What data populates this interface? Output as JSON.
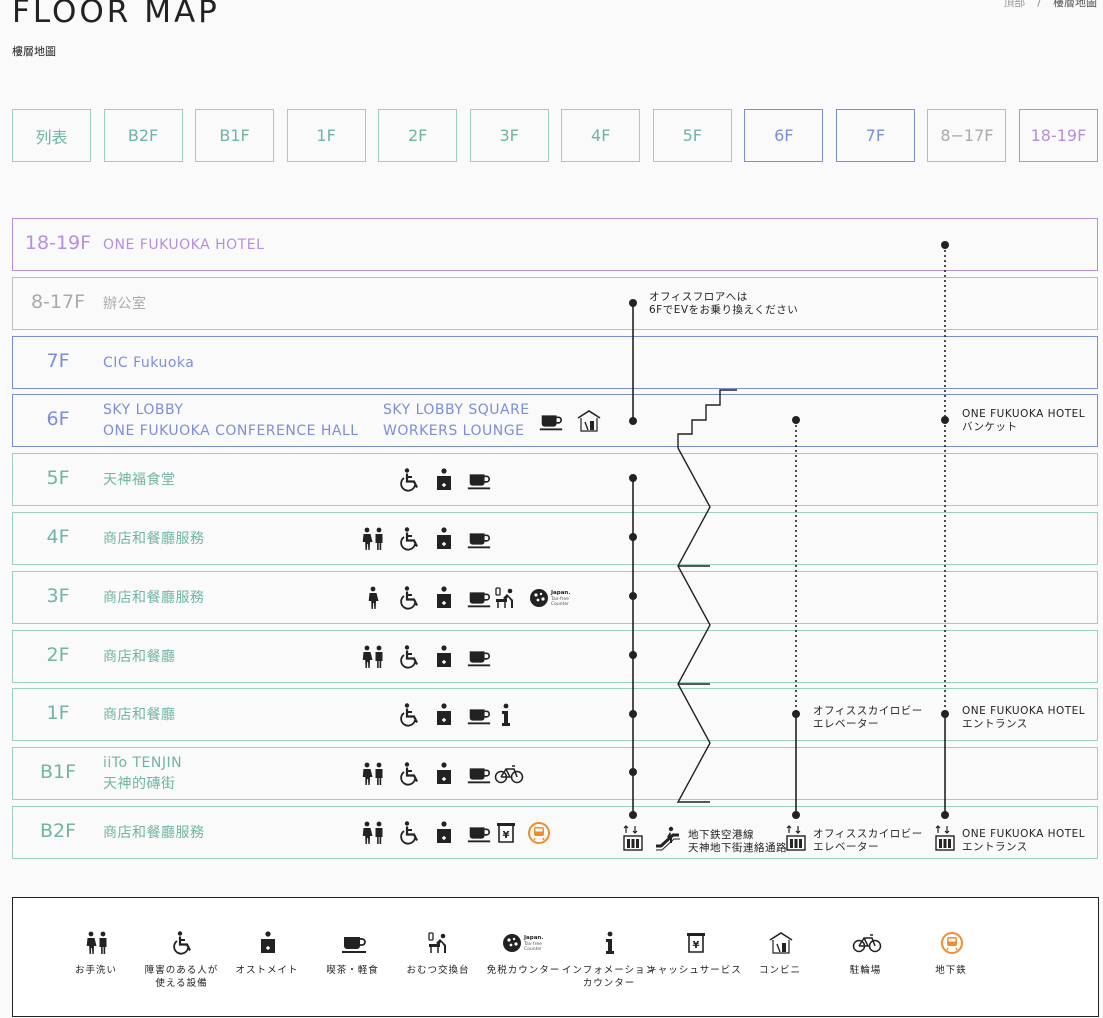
{
  "header": {
    "title": "FLOOR MAP",
    "subtitle": "樓層地圖",
    "breadcrumb": [
      "頂部",
      "樓層地圖"
    ],
    "breadcrumb_sep": "/"
  },
  "tabs": [
    {
      "label": "列表",
      "style": "green"
    },
    {
      "label": "B2F",
      "style": "green"
    },
    {
      "label": "B1F",
      "style": "green"
    },
    {
      "label": "1F",
      "style": "green"
    },
    {
      "label": "2F",
      "style": "green"
    },
    {
      "label": "3F",
      "style": "green"
    },
    {
      "label": "4F",
      "style": "green"
    },
    {
      "label": "5F",
      "style": "green"
    },
    {
      "label": "6F",
      "style": "blue"
    },
    {
      "label": "7F",
      "style": "blue"
    },
    {
      "label": "8−17F",
      "style": "gray"
    },
    {
      "label": "18-19F",
      "style": "purple"
    }
  ],
  "floors": [
    {
      "floor": "18-19F",
      "style": "purple",
      "names": [
        "ONE FUKUOKA HOTEL"
      ]
    },
    {
      "floor": "8-17F",
      "style": "gray",
      "names": [
        "辦公室"
      ]
    },
    {
      "floor": "7F",
      "style": "blue",
      "names": [
        "CIC Fukuoka"
      ]
    },
    {
      "floor": "6F",
      "style": "blue",
      "names": [
        "SKY LOBBY",
        "ONE FUKUOKA CONFERENCE HALL"
      ],
      "names2": [
        "SKY LOBBY SQUARE",
        "WORKERS LOUNGE"
      ],
      "icons": [
        "cafe",
        "convenience"
      ]
    },
    {
      "floor": "5F",
      "style": "green",
      "names": [
        "天神福食堂"
      ],
      "icons": [
        "accessible",
        "ostomate",
        "cafe"
      ]
    },
    {
      "floor": "4F",
      "style": "green",
      "names": [
        "商店和餐廳服務"
      ],
      "icons": [
        "restroom",
        "accessible",
        "ostomate",
        "cafe"
      ]
    },
    {
      "floor": "3F",
      "style": "green",
      "names": [
        "商店和餐廳服務"
      ],
      "icons": [
        "restroom-female",
        "accessible",
        "ostomate",
        "cafe",
        "diaper",
        "taxfree"
      ]
    },
    {
      "floor": "2F",
      "style": "green",
      "names": [
        "商店和餐廳"
      ],
      "icons": [
        "restroom",
        "accessible",
        "ostomate",
        "cafe"
      ]
    },
    {
      "floor": "1F",
      "style": "green",
      "names": [
        "商店和餐廳"
      ],
      "icons": [
        "accessible",
        "ostomate",
        "cafe",
        "info"
      ]
    },
    {
      "floor": "B1F",
      "style": "green",
      "names": [
        "iiTo TENJIN",
        "天神的磚街"
      ],
      "icons": [
        "restroom",
        "accessible",
        "ostomate",
        "cafe",
        "bicycle"
      ]
    },
    {
      "floor": "B2F",
      "style": "green",
      "names": [
        "商店和餐廳服務"
      ],
      "icons": [
        "restroom",
        "accessible",
        "ostomate",
        "cafe",
        "atm",
        "subway"
      ]
    }
  ],
  "notes": {
    "office_transfer": [
      "オフィスフロアへは",
      "6FでEVをお乗り換えください"
    ],
    "hotel_banquet": [
      "ONE FUKUOKA HOTEL",
      "バンケット"
    ],
    "office_elevator_1f": [
      "オフィススカイロビー",
      "エレベーター"
    ],
    "hotel_entrance_1f": [
      "ONE FUKUOKA HOTEL",
      "エントランス"
    ],
    "subway_link": [
      "地下鉄空港線",
      "天神地下街連絡通路"
    ],
    "office_elevator_b2f": [
      "オフィススカイロビー",
      "エレベーター"
    ],
    "hotel_entrance_b2f": [
      "ONE FUKUOKA HOTEL",
      "エントランス"
    ]
  },
  "legend": [
    {
      "icon": "restroom",
      "label": [
        "お手洗い"
      ]
    },
    {
      "icon": "accessible",
      "label": [
        "障害のある人が",
        "使える設備"
      ]
    },
    {
      "icon": "ostomate",
      "label": [
        "オストメイト"
      ]
    },
    {
      "icon": "cafe",
      "label": [
        "喫茶・軽食"
      ]
    },
    {
      "icon": "diaper",
      "label": [
        "おむつ交換台"
      ]
    },
    {
      "icon": "taxfree",
      "label": [
        "免税カウンター"
      ]
    },
    {
      "icon": "info",
      "label": [
        "インフォメーション",
        "カウンター"
      ]
    },
    {
      "icon": "atm",
      "label": [
        "キャッシュサービス"
      ]
    },
    {
      "icon": "convenience",
      "label": [
        "コンビニ"
      ]
    },
    {
      "icon": "bicycle",
      "label": [
        "駐輪場"
      ]
    },
    {
      "icon": "subway",
      "label": [
        "地下鉄"
      ]
    }
  ],
  "taxfree_text": [
    "Japan.",
    "Tax-free",
    "Counter"
  ],
  "colors": {
    "green": "#6fb5a4",
    "blue": "#7b8fd8",
    "gray": "#aaaaaa",
    "purple": "#b68fe0",
    "subway": "#f08c2e"
  }
}
